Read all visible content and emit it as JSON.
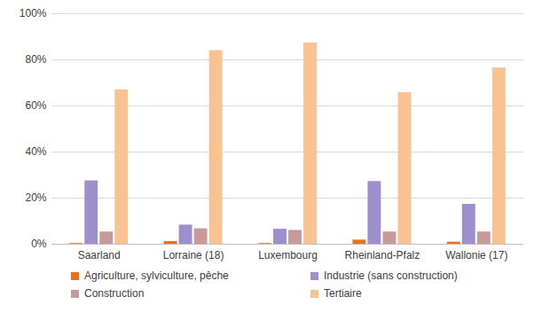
{
  "chart_data": {
    "type": "bar",
    "categories": [
      "Saarland",
      "Lorraine (18)",
      "Luxembourg",
      "Rheinland-Pfalz",
      "Wallonie (17)"
    ],
    "series": [
      {
        "name": "Agriculture, sylviculture, pêche",
        "color": "#e8731e",
        "values": [
          0.3,
          1.2,
          0.3,
          1.8,
          0.9
        ]
      },
      {
        "name": "Industrie (sans construction)",
        "color": "#9d8fcb",
        "values": [
          27.5,
          8.3,
          6.5,
          27.2,
          17.3
        ]
      },
      {
        "name": "Construction",
        "color": "#c79a9a",
        "values": [
          5.3,
          6.7,
          6.0,
          5.3,
          5.3
        ]
      },
      {
        "name": "Tertiaire",
        "color": "#f9c391",
        "values": [
          67.0,
          84.0,
          87.3,
          65.8,
          76.5
        ]
      }
    ],
    "ylim": [
      0,
      100
    ],
    "yticks": [
      {
        "value": 0,
        "label": "0%"
      },
      {
        "value": 20,
        "label": "20%"
      },
      {
        "value": 40,
        "label": "40%"
      },
      {
        "value": 60,
        "label": "60%"
      },
      {
        "value": 80,
        "label": "80%"
      },
      {
        "value": 100,
        "label": "100%"
      }
    ],
    "grid": true,
    "legend": "bottom"
  }
}
